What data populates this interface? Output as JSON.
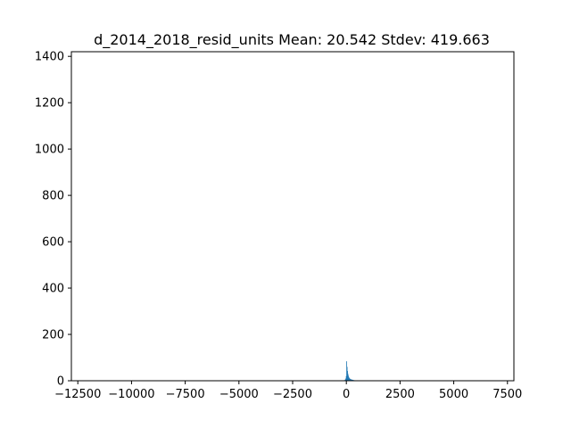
{
  "chart_data": {
    "type": "bar",
    "title": "d_2014_2018_resid_units  Mean: 20.542  Stdev: 419.663",
    "xlabel": "",
    "ylabel": "",
    "xlim": [
      -12800,
      7800
    ],
    "ylim": [
      0,
      1420
    ],
    "x_ticks": [
      -12500,
      -10000,
      -7500,
      -5000,
      -2500,
      0,
      2500,
      5000,
      7500
    ],
    "x_tick_labels": [
      "−12500",
      "−10000",
      "−7500",
      "−5000",
      "−2500",
      "0",
      "2500",
      "5000",
      "7500"
    ],
    "y_ticks": [
      0,
      200,
      400,
      600,
      800,
      1000,
      1200,
      1400
    ],
    "y_tick_labels": [
      "0",
      "200",
      "400",
      "600",
      "800",
      "1000",
      "1200",
      "1400"
    ],
    "bin_width": 20,
    "bins": [
      {
        "x": -200,
        "count": 1
      },
      {
        "x": -100,
        "count": 3
      },
      {
        "x": -60,
        "count": 6
      },
      {
        "x": -40,
        "count": 10
      },
      {
        "x": -20,
        "count": 20
      },
      {
        "x": 0,
        "count": 84
      },
      {
        "x": 20,
        "count": 60
      },
      {
        "x": 40,
        "count": 42
      },
      {
        "x": 60,
        "count": 30
      },
      {
        "x": 80,
        "count": 22
      },
      {
        "x": 100,
        "count": 16
      },
      {
        "x": 120,
        "count": 12
      },
      {
        "x": 140,
        "count": 10
      },
      {
        "x": 160,
        "count": 8
      },
      {
        "x": 180,
        "count": 7
      },
      {
        "x": 200,
        "count": 6
      },
      {
        "x": 220,
        "count": 5
      },
      {
        "x": 240,
        "count": 5
      },
      {
        "x": 260,
        "count": 4
      },
      {
        "x": 280,
        "count": 4
      },
      {
        "x": 300,
        "count": 3
      },
      {
        "x": 340,
        "count": 3
      },
      {
        "x": 380,
        "count": 2
      },
      {
        "x": 420,
        "count": 2
      },
      {
        "x": 480,
        "count": 2
      },
      {
        "x": 540,
        "count": 1
      },
      {
        "x": 600,
        "count": 1
      },
      {
        "x": 700,
        "count": 1
      },
      {
        "x": 800,
        "count": 1
      }
    ],
    "bar_color": "#1f77b4",
    "grid": false
  }
}
